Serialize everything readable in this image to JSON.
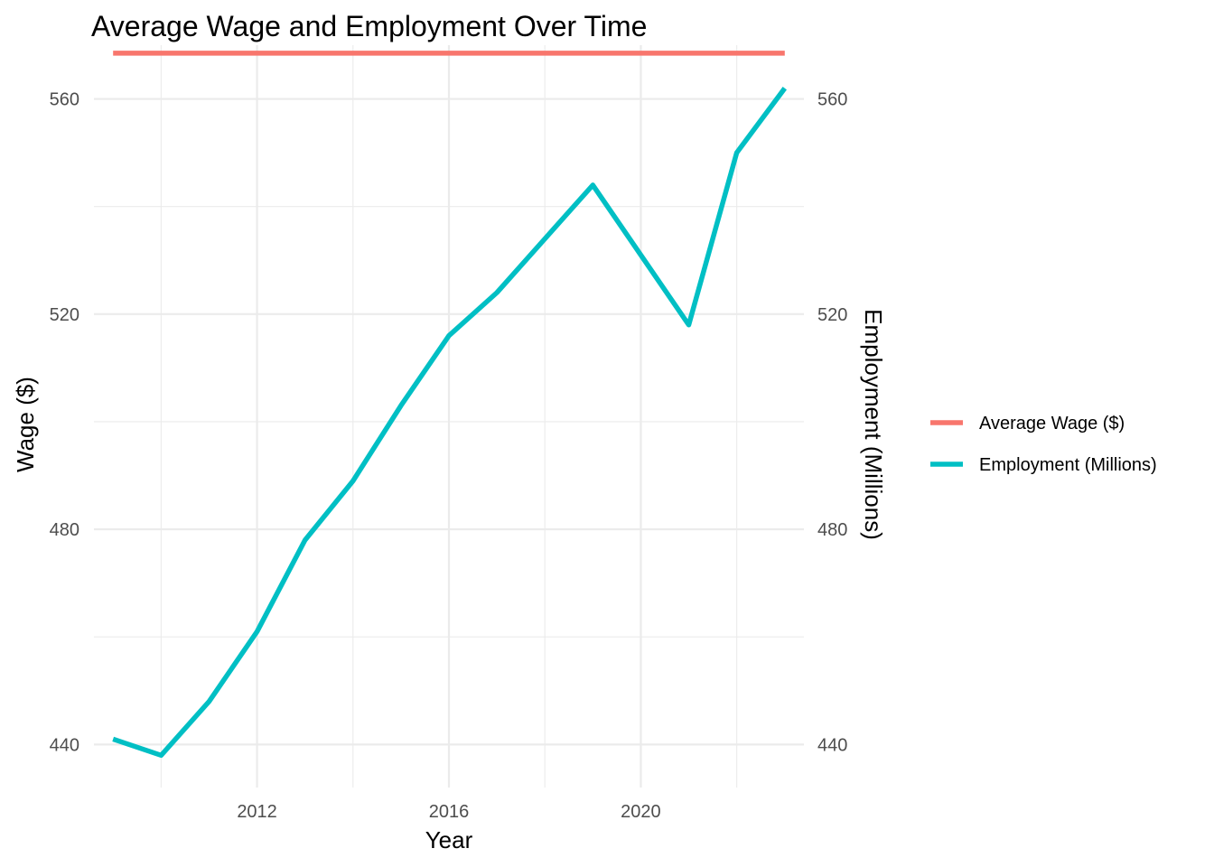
{
  "chart_data": {
    "type": "line",
    "title": "Average Wage and Employment Over Time",
    "xlabel": "Year",
    "ylabel": "Wage ($)",
    "y2label": "Employment (Millions)",
    "xlim": [
      2008.6,
      2023.4
    ],
    "ylim": [
      432,
      570
    ],
    "x_ticks": [
      2012,
      2016,
      2020
    ],
    "x_minor_ticks": [
      2010,
      2014,
      2018,
      2022
    ],
    "y_ticks": [
      440,
      480,
      520,
      560
    ],
    "y_minor_ticks": [
      460,
      500,
      540
    ],
    "y2_ticks": [
      440,
      480,
      520,
      560
    ],
    "grid": true,
    "legend_position": "right",
    "series": [
      {
        "name": "Average Wage ($)",
        "color": "#F8766D",
        "x": [
          2009,
          2010,
          2011,
          2012,
          2013,
          2014,
          2015,
          2016,
          2017,
          2018,
          2019,
          2020,
          2021,
          2022,
          2023
        ],
        "values": [
          568.5,
          568.5,
          568.5,
          568.5,
          568.5,
          568.5,
          568.5,
          568.5,
          568.5,
          568.5,
          568.5,
          568.5,
          568.5,
          568.5,
          568.5
        ]
      },
      {
        "name": "Employment (Millions)",
        "color": "#00BFC4",
        "x": [
          2009,
          2010,
          2011,
          2012,
          2013,
          2014,
          2015,
          2016,
          2017,
          2018,
          2019,
          2020,
          2021,
          2022,
          2023
        ],
        "values": [
          441,
          438,
          448,
          461,
          478,
          489,
          503,
          516,
          524,
          534,
          544,
          531,
          518,
          550,
          562
        ]
      }
    ]
  }
}
